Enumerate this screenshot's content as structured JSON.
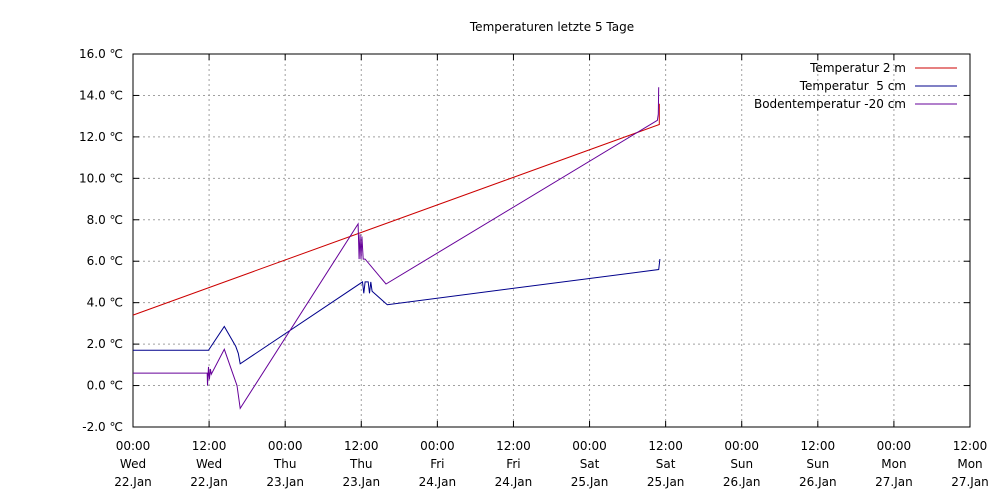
{
  "chart_data": {
    "type": "line",
    "title": "Temperaturen letzte 5 Tage",
    "xlabel": "",
    "ylabel": "",
    "x_unit": "hours",
    "xlim": [
      0,
      132
    ],
    "ylim": [
      -2,
      16
    ],
    "y_ticks": [
      {
        "value": -2,
        "label": "-2.0 ℃"
      },
      {
        "value": 0,
        "label": "0.0 ℃"
      },
      {
        "value": 2,
        "label": "2.0 ℃"
      },
      {
        "value": 4,
        "label": "4.0 ℃"
      },
      {
        "value": 6,
        "label": "6.0 ℃"
      },
      {
        "value": 8,
        "label": "8.0 ℃"
      },
      {
        "value": 10,
        "label": "10.0 ℃"
      },
      {
        "value": 12,
        "label": "12.0 ℃"
      },
      {
        "value": 14,
        "label": "14.0 ℃"
      },
      {
        "value": 16,
        "label": "16.0 ℃"
      }
    ],
    "x_ticks": [
      {
        "value": 0,
        "time": "00:00",
        "day": "Wed",
        "date": "22.Jan"
      },
      {
        "value": 12,
        "time": "12:00",
        "day": "Wed",
        "date": "22.Jan"
      },
      {
        "value": 24,
        "time": "00:00",
        "day": "Thu",
        "date": "23.Jan"
      },
      {
        "value": 36,
        "time": "12:00",
        "day": "Thu",
        "date": "23.Jan"
      },
      {
        "value": 48,
        "time": "00:00",
        "day": "Fri",
        "date": "24.Jan"
      },
      {
        "value": 60,
        "time": "12:00",
        "day": "Fri",
        "date": "24.Jan"
      },
      {
        "value": 72,
        "time": "00:00",
        "day": "Sat",
        "date": "25.Jan"
      },
      {
        "value": 84,
        "time": "12:00",
        "day": "Sat",
        "date": "25.Jan"
      },
      {
        "value": 96,
        "time": "00:00",
        "day": "Sun",
        "date": "26.Jan"
      },
      {
        "value": 108,
        "time": "12:00",
        "day": "Sun",
        "date": "26.Jan"
      },
      {
        "value": 120,
        "time": "00:00",
        "day": "Mon",
        "date": "27.Jan"
      },
      {
        "value": 132,
        "time": "12:00",
        "day": "Mon",
        "date": "27.Jan"
      }
    ],
    "grid": true,
    "legend_position": "top-right",
    "series": [
      {
        "name": "Temperatur 2 m",
        "color": "#cc0000",
        "points": [
          [
            0,
            3.4
          ],
          [
            83,
            12.6
          ],
          [
            83,
            13.6
          ]
        ]
      },
      {
        "name": "Temperatur  5 cm",
        "color": "#00008b",
        "points": [
          [
            0,
            1.7
          ],
          [
            11.9,
            1.7
          ],
          [
            14.4,
            2.85
          ],
          [
            16.2,
            1.9
          ],
          [
            16.6,
            1.55
          ],
          [
            16.9,
            1.05
          ],
          [
            36.2,
            5.0
          ],
          [
            36.4,
            4.45
          ],
          [
            36.6,
            5.0
          ],
          [
            37.1,
            5.0
          ],
          [
            37.3,
            4.45
          ],
          [
            37.5,
            5.0
          ],
          [
            37.7,
            4.55
          ],
          [
            40.1,
            3.9
          ],
          [
            82.9,
            5.6
          ],
          [
            83.1,
            6.1
          ]
        ]
      },
      {
        "name": "Bodentemperatur -20 cm",
        "color": "#660099",
        "points": [
          [
            0,
            0.6
          ],
          [
            11.7,
            0.6
          ],
          [
            11.75,
            0.0
          ],
          [
            11.9,
            0.9
          ],
          [
            12.05,
            0.3
          ],
          [
            12.2,
            0.8
          ],
          [
            12.35,
            0.55
          ],
          [
            14.4,
            1.75
          ],
          [
            16.4,
            0.0
          ],
          [
            16.9,
            -1.1
          ],
          [
            35.5,
            7.8
          ],
          [
            35.65,
            6.1
          ],
          [
            35.8,
            7.3
          ],
          [
            35.95,
            6.1
          ],
          [
            36.1,
            7.2
          ],
          [
            36.3,
            6.1
          ],
          [
            36.6,
            6.1
          ],
          [
            39.9,
            4.9
          ],
          [
            82.7,
            12.8
          ],
          [
            82.85,
            13.1
          ],
          [
            82.9,
            14.4
          ]
        ]
      }
    ]
  }
}
